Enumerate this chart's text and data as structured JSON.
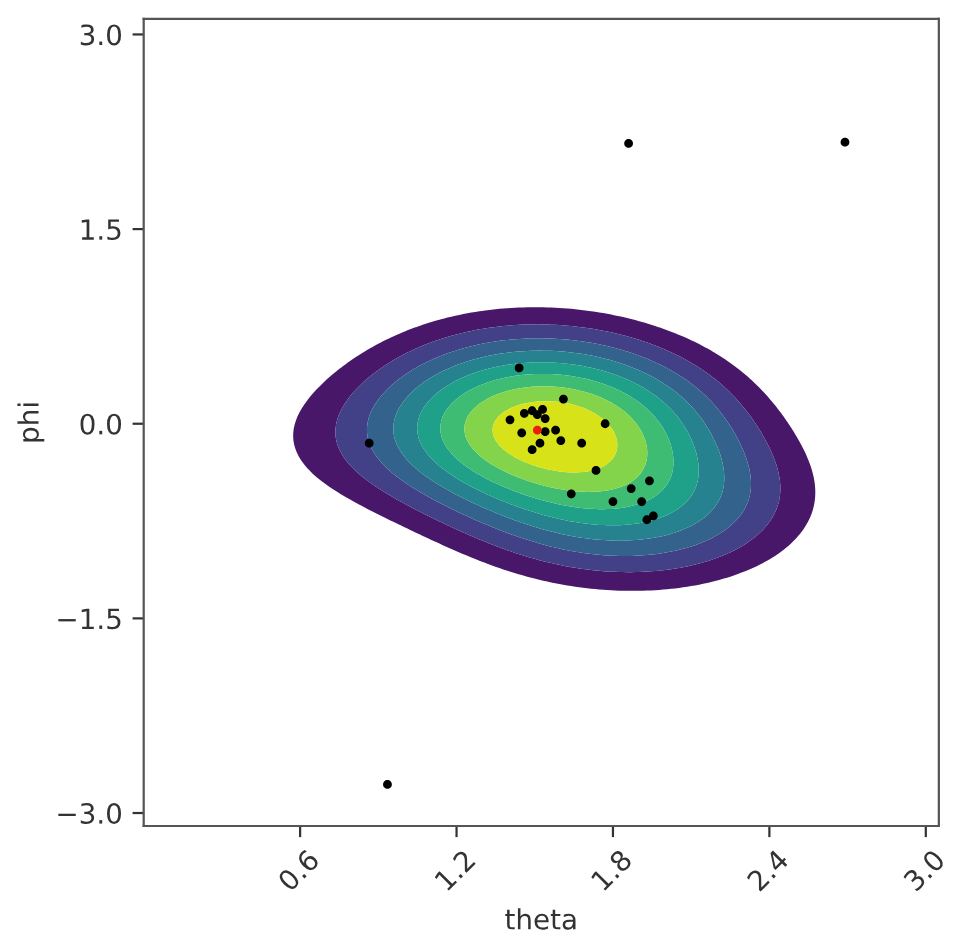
{
  "chart_data": {
    "type": "scatter",
    "xlabel": "theta",
    "ylabel": "phi",
    "xlim": [
      0.0,
      3.05
    ],
    "ylim": [
      -3.1,
      3.12
    ],
    "xticks": [
      0.6,
      1.2,
      1.8,
      2.4,
      {
        "value": 3.0,
        "label": "3.0"
      }
    ],
    "yticks": [
      {
        "value": -3.0,
        "label": "−3.0"
      },
      {
        "value": -1.5,
        "label": "−1.5"
      },
      {
        "value": 0.0,
        "label": "0.0"
      },
      1.5,
      {
        "value": 3.0,
        "label": "3.0"
      }
    ],
    "grid": false,
    "legend": false,
    "marker": "circle",
    "series": [
      {
        "x": [
          0.865,
          1.44,
          1.61,
          1.405,
          1.46,
          1.49,
          1.51,
          1.53,
          1.54,
          1.45,
          1.54,
          1.58,
          1.52,
          1.49,
          1.6,
          1.68,
          1.77,
          1.735,
          1.64,
          1.8,
          1.87,
          1.94,
          1.91,
          1.955,
          1.93,
          1.86,
          2.69,
          0.935,
          1.51
        ],
        "values": [
          -0.15,
          0.43,
          0.19,
          0.03,
          0.08,
          0.1,
          0.07,
          0.11,
          0.04,
          -0.07,
          -0.06,
          -0.05,
          -0.15,
          -0.2,
          -0.13,
          -0.15,
          0.0,
          -0.36,
          -0.54,
          -0.6,
          -0.5,
          -0.44,
          -0.6,
          -0.71,
          -0.74,
          2.16,
          2.17,
          -2.78,
          -0.05
        ],
        "colors": [
          "#000000",
          "#000000",
          "#000000",
          "#000000",
          "#000000",
          "#000000",
          "#000000",
          "#000000",
          "#000000",
          "#000000",
          "#000000",
          "#000000",
          "#000000",
          "#000000",
          "#000000",
          "#000000",
          "#000000",
          "#000000",
          "#000000",
          "#000000",
          "#000000",
          "#000000",
          "#000000",
          "#000000",
          "#000000",
          "#000000",
          "#000000",
          "#000000",
          "#e8200c"
        ]
      }
    ]
  }
}
